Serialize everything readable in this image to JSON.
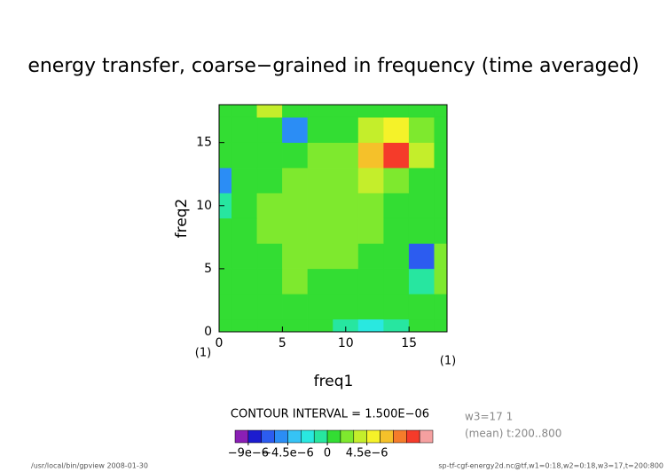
{
  "chart_data": {
    "type": "contour",
    "title": "energy transfer, coarse−grained in frequency (time averaged)",
    "xlabel": "freq1",
    "ylabel": "freq2",
    "x_unit": "(1)",
    "y_unit": "(1)",
    "x": [
      0,
      2,
      4,
      6,
      8,
      10,
      12,
      14,
      16,
      18
    ],
    "y": [
      0,
      2,
      4,
      6,
      8,
      10,
      12,
      14,
      16,
      18
    ],
    "z": [
      [
        1e-06,
        5e-07,
        8e-07,
        6e-07,
        5e-07,
        -1e-06,
        -3e-06,
        -5e-07,
        5e-07,
        8e-07
      ],
      [
        6e-07,
        8e-07,
        1e-06,
        1.2e-06,
        8e-07,
        5e-07,
        6e-07,
        8e-07,
        5e-07,
        1e-06
      ],
      [
        8e-07,
        1e-06,
        1.2e-06,
        1.6e-06,
        1.2e-06,
        1.4e-06,
        1e-06,
        6e-07,
        -5e-07,
        1.5e-06
      ],
      [
        1e-06,
        1.2e-06,
        1.4e-06,
        1.6e-06,
        1.8e-06,
        1.6e-06,
        1.2e-06,
        5e-07,
        -7e-06,
        2e-06
      ],
      [
        5e-07,
        1.4e-06,
        1.8e-06,
        2e-06,
        1.8e-06,
        2e-06,
        1.6e-06,
        1e-06,
        5e-07,
        1e-06
      ],
      [
        -1.5e-06,
        1.2e-06,
        1.6e-06,
        1.8e-06,
        2.2e-06,
        2e-06,
        1.8e-06,
        1e-06,
        8e-07,
        6e-07
      ],
      [
        -5e-06,
        8e-07,
        1.4e-06,
        1.6e-06,
        1.8e-06,
        2e-06,
        3e-06,
        2e-06,
        1.2e-06,
        8e-07
      ],
      [
        5e-07,
        1e-06,
        1.2e-06,
        1.4e-06,
        1.6e-06,
        2e-06,
        7e-06,
        1e-05,
        3e-06,
        8e-07
      ],
      [
        8e-07,
        6e-07,
        5e-07,
        -6e-06,
        6e-07,
        1.2e-06,
        4e-06,
        5e-06,
        1.5e-06,
        8e-07
      ],
      [
        1e-06,
        1e-06,
        3e-06,
        5e-07,
        8e-07,
        1e-06,
        1.2e-06,
        1.4e-06,
        8e-07,
        1e-06
      ]
    ],
    "xlim": [
      0,
      18
    ],
    "ylim": [
      0,
      18
    ],
    "xticks": [
      0,
      5,
      10,
      15
    ],
    "yticks": [
      0,
      5,
      10,
      15
    ],
    "levels": [
      -9e-06,
      -7.5e-06,
      -6e-06,
      -4.5e-06,
      -3e-06,
      -1.5e-06,
      0,
      1.5e-06,
      3e-06,
      4.5e-06,
      6e-06,
      7.5e-06,
      9e-06,
      1.05e-05
    ],
    "colors": [
      "#8a1fb5",
      "#1c1ccf",
      "#2c5cf0",
      "#2b8df5",
      "#36c3f5",
      "#29e8e0",
      "#27e6a0",
      "#33dd33",
      "#7ee92e",
      "#c4ee2b",
      "#f5f229",
      "#f5c12a",
      "#f57c2a",
      "#f53b2a",
      "#f5a0a0"
    ],
    "colorbar_ticks": [
      {
        "value": -9e-06,
        "label": "−9e−6"
      },
      {
        "value": -4.5e-06,
        "label": "−4.5e−6"
      },
      {
        "value": 0,
        "label": "0"
      },
      {
        "value": 4.5e-06,
        "label": "4.5e−6"
      }
    ],
    "contour_interval": "CONTOUR INTERVAL = 1.500E−06",
    "info": [
      "w3=17 1",
      "(mean) t:200..800"
    ],
    "footer_left": "/usr/local/bin/gpview  2008-01-30",
    "footer_right": "sp-tf-cgf-energy2d.nc@tf,w1=0:18,w2=0:18,w3=17,t=200:800"
  }
}
